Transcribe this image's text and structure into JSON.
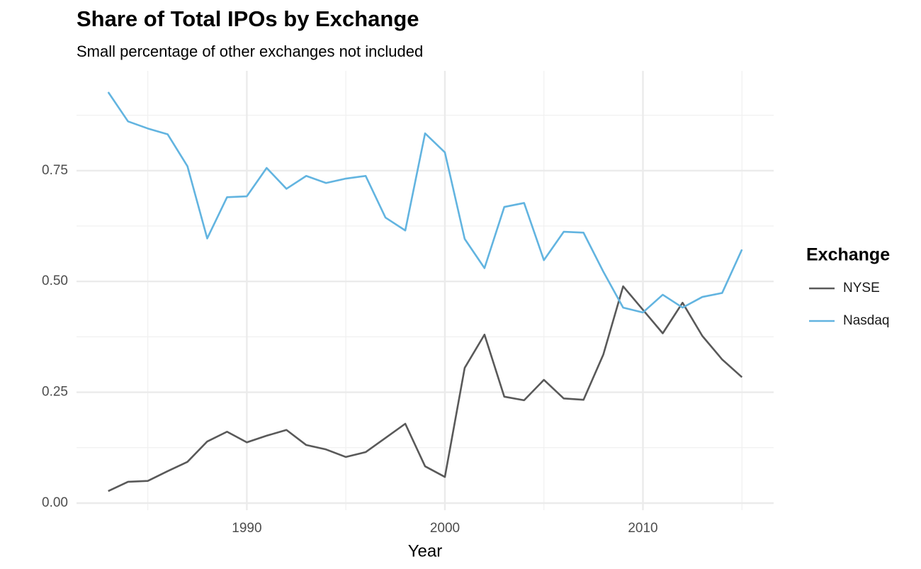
{
  "chart_data": {
    "type": "line",
    "title": "Share of Total IPOs by Exchange",
    "subtitle": "Small percentage of other exchanges not included",
    "x_label": "Year",
    "legend_title": "Exchange",
    "legend_position": "right",
    "grid": true,
    "x": [
      1983,
      1984,
      1985,
      1986,
      1987,
      1988,
      1989,
      1990,
      1991,
      1992,
      1993,
      1994,
      1995,
      1996,
      1997,
      1998,
      1999,
      2000,
      2001,
      2002,
      2003,
      2004,
      2005,
      2006,
      2007,
      2008,
      2009,
      2010,
      2011,
      2012,
      2013,
      2014,
      2015
    ],
    "series": [
      {
        "name": "NYSE",
        "color": "#595959",
        "values": [
          0.027,
          0.048,
          0.05,
          0.072,
          0.093,
          0.139,
          0.161,
          0.137,
          0.152,
          0.165,
          0.131,
          0.121,
          0.104,
          0.115,
          0.147,
          0.179,
          0.083,
          0.059,
          0.305,
          0.38,
          0.24,
          0.232,
          0.278,
          0.236,
          0.233,
          0.335,
          0.489,
          0.436,
          0.383,
          0.452,
          0.377,
          0.324,
          0.284
        ]
      },
      {
        "name": "Nasdaq",
        "color": "#62b4e0",
        "values": [
          0.927,
          0.861,
          0.845,
          0.832,
          0.76,
          0.597,
          0.69,
          0.692,
          0.756,
          0.709,
          0.738,
          0.722,
          0.732,
          0.738,
          0.644,
          0.615,
          0.834,
          0.791,
          0.596,
          0.53,
          0.668,
          0.677,
          0.548,
          0.612,
          0.61,
          0.522,
          0.441,
          0.43,
          0.47,
          0.441,
          0.465,
          0.474,
          0.572
        ]
      }
    ],
    "xlim": [
      1981.4,
      2016.6
    ],
    "xticks": [
      1990,
      2000,
      2010
    ],
    "ylim": [
      -0.016,
      0.975
    ],
    "yticks": [
      {
        "value": 0,
        "label": "0.00"
      },
      0.25,
      {
        "value": 0.5,
        "label": "0.50"
      },
      0.75
    ]
  }
}
